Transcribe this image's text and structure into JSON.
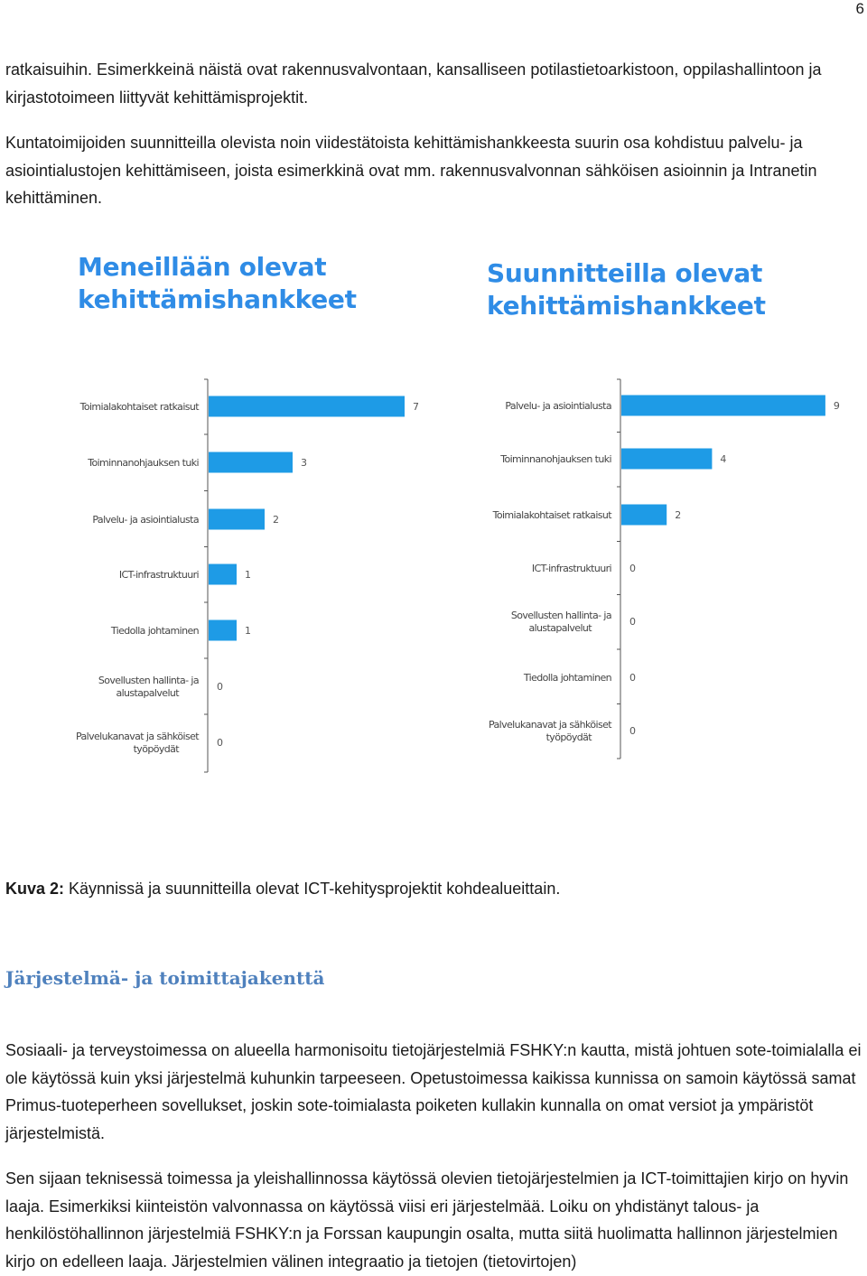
{
  "page": {
    "number": "6"
  },
  "paragraphs": {
    "p1": "ratkaisuihin. Esimerkkeinä näistä ovat rakennusvalvontaan, kansalliseen potilastietoarkistoon, oppilashallintoon ja kirjastotoimeen liittyvät kehittämisprojektit.",
    "p2": "Kuntatoimijoiden suunnitteilla olevista noin viidestätoista kehittämishankkeesta suurin osa kohdistuu palvelu- ja asiointialustojen kehittämiseen, joista esimerkkinä ovat mm. rakennusvalvonnan sähköisen asioinnin ja Intranetin kehittäminen.",
    "p3": "Sosiaali- ja terveystoimessa on alueella harmonisoitu tietojärjestelmiä FSHKY:n kautta, mistä johtuen sote-toimialalla ei ole käytössä kuin yksi järjestelmä kuhunkin tarpeeseen. Opetustoimessa kaikissa kunnissa on samoin käytössä samat Primus-tuoteperheen sovellukset, joskin sote-toimialasta poiketen kullakin kunnalla on omat versiot ja ympäristöt järjestelmistä.",
    "p4": "Sen sijaan teknisessä toimessa ja yleishallinnossa käytössä olevien tietojärjestelmien ja ICT-toimittajien kirjo on hyvin laaja. Esimerkiksi kiinteistön valvonnassa on käytössä viisi eri järjestelmää. Loiku on yhdistänyt talous- ja henkilöstöhallinnon järjestelmiä FSHKY:n ja Forssan kaupungin osalta, mutta siitä huolimatta hallinnon järjestelmien kirjo on edelleen laaja. Järjestelmien välinen integraatio ja tietojen (tietovirtojen)"
  },
  "caption": {
    "label": "Kuva 2:",
    "text": " Käynnissä ja suunnitteilla olevat ICT-kehitysprojektit kohdealueittain."
  },
  "section_heading": "Järjestelmä- ja toimittajakenttä",
  "colors": {
    "bar": "#1e9be6",
    "title": "#2f8ce6",
    "heading": "#4f81bd",
    "axis": "#555555"
  },
  "chart_data": [
    {
      "type": "bar",
      "orientation": "horizontal",
      "title": "Meneillään olevat kehittämishankkeet",
      "title_lines": [
        "Meneillään olevat",
        "kehittämishankkeet"
      ],
      "categories": [
        [
          "Toimialakohtaiset ratkaisut"
        ],
        [
          "Toiminnanohjauksen tuki"
        ],
        [
          "Palvelu- ja asiointialusta"
        ],
        [
          "ICT-infrastruktuuri"
        ],
        [
          "Tiedolla johtaminen"
        ],
        [
          "Sovellusten hallinta- ja",
          "alustapalvelut"
        ],
        [
          "Palvelukanavat ja sähköiset",
          "työpöydät"
        ]
      ],
      "values": [
        7,
        3,
        2,
        1,
        1,
        0,
        0
      ],
      "xlim": [
        0,
        7
      ]
    },
    {
      "type": "bar",
      "orientation": "horizontal",
      "title": "Suunnitteilla olevat kehittämishankkeet",
      "title_lines": [
        "Suunnitteilla olevat",
        "kehittämishankkeet"
      ],
      "categories": [
        [
          "Palvelu- ja asiointialusta"
        ],
        [
          "Toiminnanohjauksen tuki"
        ],
        [
          "Toimialakohtaiset ratkaisut"
        ],
        [
          "ICT-infrastruktuuri"
        ],
        [
          "Sovellusten hallinta- ja",
          "alustapalvelut"
        ],
        [
          "Tiedolla johtaminen"
        ],
        [
          "Palvelukanavat ja sähköiset",
          "työpöydät"
        ]
      ],
      "values": [
        9,
        4,
        2,
        0,
        0,
        0,
        0
      ],
      "xlim": [
        0,
        9
      ]
    }
  ]
}
